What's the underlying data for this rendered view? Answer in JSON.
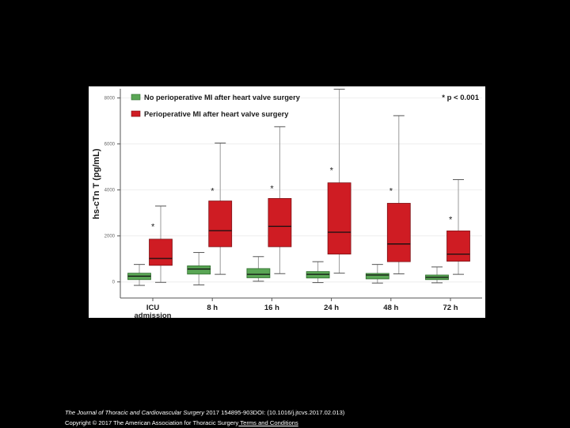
{
  "chart_data": {
    "type": "box",
    "ylabel": "hs-cTn T (pg/mL)",
    "ylim": [
      -700,
      8400
    ],
    "yticks": [
      0,
      2000,
      4000,
      6000,
      8000
    ],
    "ytick_labels": [
      "0",
      "2000",
      "4000",
      "6000",
      "8000"
    ],
    "categories": [
      "ICU admission",
      "8 h",
      "16 h",
      "24 h",
      "48 h",
      "72 h"
    ],
    "category_labels": [
      [
        "ICU",
        "admission"
      ],
      [
        "8 h"
      ],
      [
        "16 h"
      ],
      [
        "24 h"
      ],
      [
        "48 h"
      ],
      [
        "72 h"
      ]
    ],
    "annotation": "* p < 0.001",
    "series": [
      {
        "name": "No perioperative MI after heart valve surgery",
        "color": "#5aa655",
        "edge": "#2f6d2d",
        "boxes": [
          {
            "low": -150,
            "q1": 100,
            "median": 250,
            "q3": 380,
            "high": 760
          },
          {
            "low": -130,
            "q1": 340,
            "median": 560,
            "q3": 700,
            "high": 1280
          },
          {
            "low": 30,
            "q1": 180,
            "median": 330,
            "q3": 580,
            "high": 1100
          },
          {
            "low": -30,
            "q1": 170,
            "median": 330,
            "q3": 450,
            "high": 880
          },
          {
            "low": -50,
            "q1": 130,
            "median": 300,
            "q3": 370,
            "high": 760
          },
          {
            "low": -40,
            "q1": 100,
            "median": 200,
            "q3": 300,
            "high": 650
          }
        ]
      },
      {
        "name": "Perioperative MI after heart valve surgery",
        "color": "#cf1c23",
        "edge": "#7e1216",
        "boxes": [
          {
            "low": -20,
            "q1": 720,
            "median": 1020,
            "q3": 1860,
            "high": 3300
          },
          {
            "low": 330,
            "q1": 1530,
            "median": 2230,
            "q3": 3520,
            "high": 6040
          },
          {
            "low": 360,
            "q1": 1530,
            "median": 2420,
            "q3": 3630,
            "high": 6750
          },
          {
            "low": 380,
            "q1": 1210,
            "median": 2160,
            "q3": 4310,
            "high": 8380
          },
          {
            "low": 350,
            "q1": 880,
            "median": 1650,
            "q3": 3420,
            "high": 7230
          },
          {
            "low": 330,
            "q1": 900,
            "median": 1210,
            "q3": 2220,
            "high": 4450
          }
        ]
      }
    ],
    "significance_marks": [
      {
        "category": "ICU admission",
        "symbol": "*",
        "y": 2290
      },
      {
        "category": "8 h",
        "symbol": "*",
        "y": 3830
      },
      {
        "category": "16 h",
        "symbol": "*",
        "y": 3930
      },
      {
        "category": "24 h",
        "symbol": "*",
        "y": 4730
      },
      {
        "category": "48 h",
        "symbol": "*",
        "y": 3830
      },
      {
        "category": "72 h",
        "symbol": "*",
        "y": 2590
      }
    ]
  },
  "footer": {
    "journal": "The Journal of Thoracic and Cardiovascular Surgery",
    "citation": " 2017 154895-903DOI: (10.1016/j.jtcvs.2017.02.013)",
    "copyright": "Copyright © 2017 The American Association for Thoracic Surgery",
    "terms_link": " Terms and Conditions"
  }
}
